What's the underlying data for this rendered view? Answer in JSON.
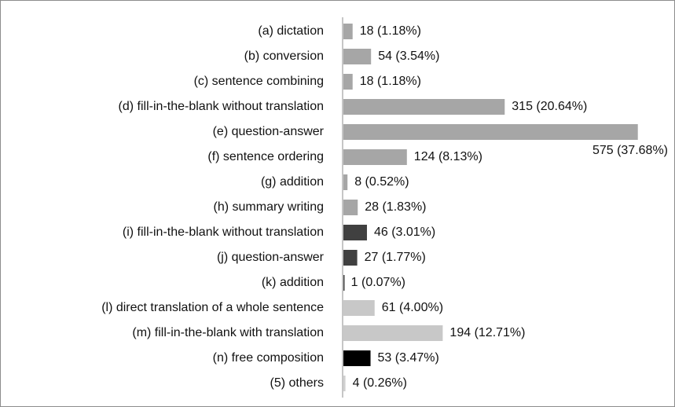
{
  "chart_data": {
    "type": "bar",
    "orientation": "horizontal",
    "categories": [
      "(a) dictation",
      "(b) conversion",
      "(c) sentence combining",
      "(d) fill-in-the-blank without translation",
      "(e) question-answer",
      "(f) sentence ordering",
      "(g) addition",
      "(h) summary writing",
      "(i) fill-in-the-blank without translation",
      "(j) question-answer",
      "(k) addition",
      "(l) direct translation of a whole sentence",
      "(m) fill-in-the-blank with translation",
      "(n) free composition",
      "(5) others"
    ],
    "values": [
      18,
      54,
      18,
      315,
      575,
      124,
      8,
      28,
      46,
      27,
      1,
      61,
      194,
      53,
      4
    ],
    "value_labels": [
      "18 (1.18%)",
      "54 (3.54%)",
      "18 (1.18%)",
      "315 (20.64%)",
      "575 (37.68%)",
      "124 (8.13%)",
      "8 (0.52%)",
      "28 (1.83%)",
      "46 (3.01%)",
      "27 (1.77%)",
      "1 (0.07%)",
      "61 (4.00%)",
      "194 (12.71%)",
      "53 (3.47%)",
      "4 (0.26%)"
    ],
    "colors": [
      "#a6a6a6",
      "#a6a6a6",
      "#a6a6a6",
      "#a6a6a6",
      "#a6a6a6",
      "#a6a6a6",
      "#a6a6a6",
      "#a6a6a6",
      "#404040",
      "#404040",
      "#404040",
      "#c8c8c8",
      "#c8c8c8",
      "#000000",
      "#d0d0d0"
    ],
    "xlim": [
      0,
      600
    ]
  }
}
